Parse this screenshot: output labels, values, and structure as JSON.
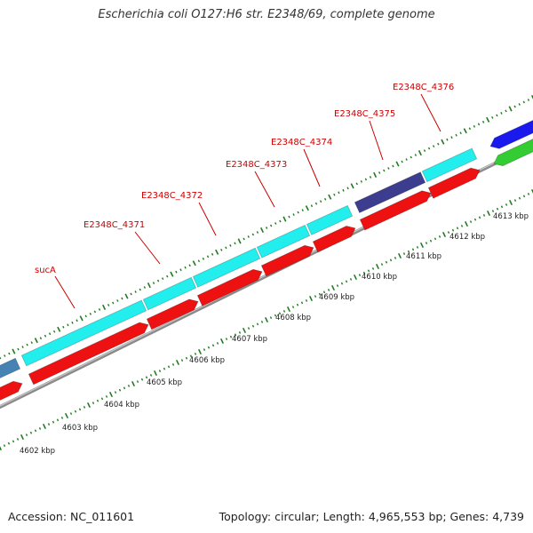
{
  "header": {
    "title": "Escherichia coli O127:H6 str. E2348/69, complete genome"
  },
  "footer": {
    "accession": "Accession: NC_011601",
    "summary": "Topology: circular; Length: 4,965,553 bp; Genes: 4,739"
  },
  "colors": {
    "forward_cds": "#22eeee",
    "reverse_cds": "#ee1111",
    "forward_other": "#3d3d8f",
    "far_blue": "#1a1aee",
    "far_green": "#33cc33",
    "far_steelblue": "#4682b4",
    "tick": "#1f7a1f",
    "backbone": "#8a8a8a",
    "label": "#cc0000"
  },
  "map": {
    "gene_labels": [
      {
        "name": "sucA"
      },
      {
        "name": "E2348C_4371"
      },
      {
        "name": "E2348C_4372"
      },
      {
        "name": "E2348C_4373"
      },
      {
        "name": "E2348C_4374"
      },
      {
        "name": "E2348C_4375"
      },
      {
        "name": "E2348C_4376"
      }
    ],
    "tick_labels": [
      {
        "text": "4602 kbp"
      },
      {
        "text": "4603 kbp"
      },
      {
        "text": "4604 kbp"
      },
      {
        "text": "4605 kbp"
      },
      {
        "text": "4606 kbp"
      },
      {
        "text": "4607 kbp"
      },
      {
        "text": "4608 kbp"
      },
      {
        "text": "4609 kbp"
      },
      {
        "text": "4610 kbp"
      },
      {
        "text": "4611 kbp"
      },
      {
        "text": "4612 kbp"
      },
      {
        "text": "4613 kbp"
      }
    ]
  }
}
